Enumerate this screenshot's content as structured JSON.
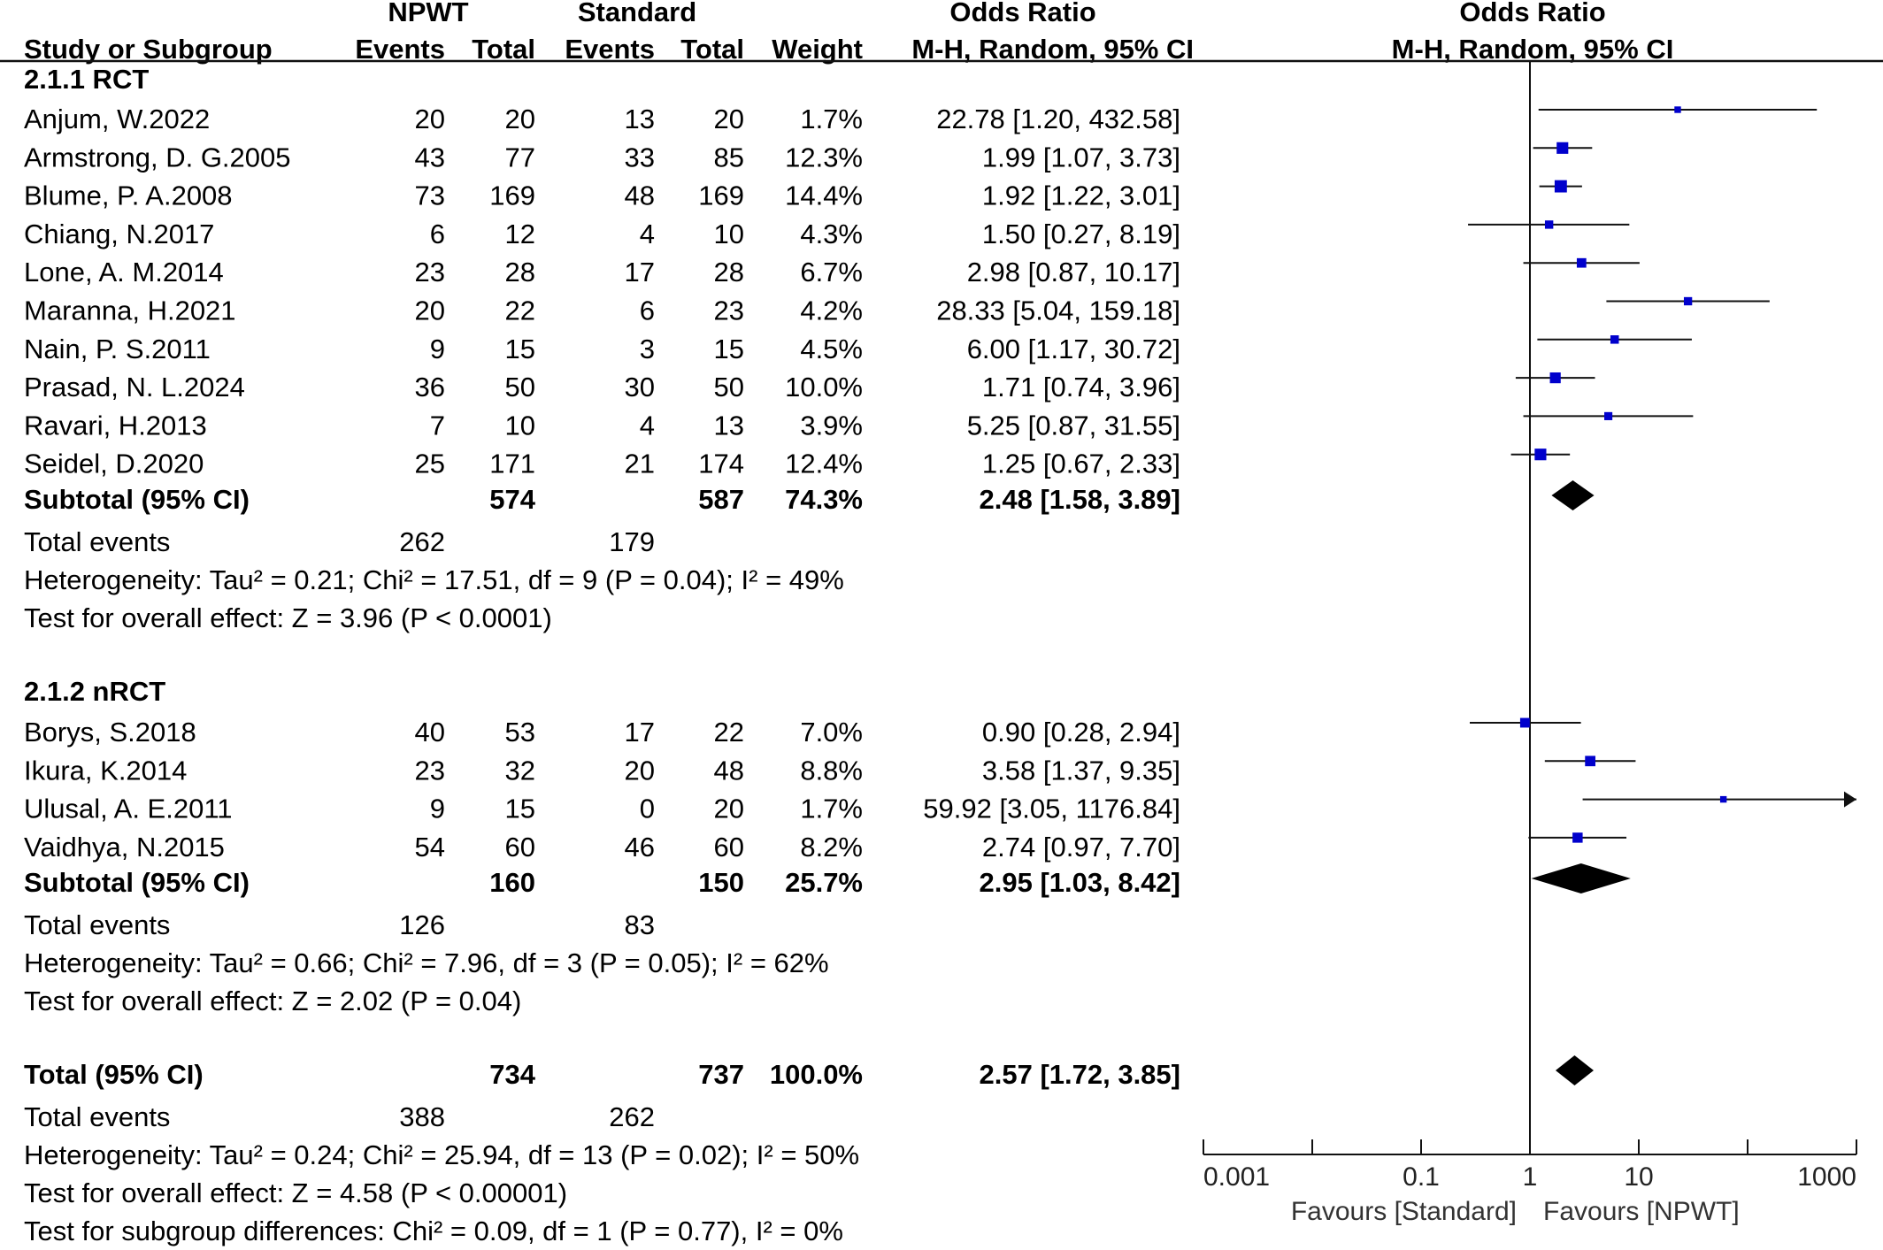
{
  "header": {
    "npwt": "NPWT",
    "standard": "Standard",
    "odds_ratio_left": "Odds Ratio",
    "odds_ratio_right": "Odds Ratio",
    "study_col": "Study or Subgroup",
    "events1": "Events",
    "total1": "Total",
    "events2": "Events",
    "total2": "Total",
    "weight": "Weight",
    "method_left": "M-H, Random, 95% CI",
    "method_right": "M-H, Random, 95% CI"
  },
  "chart_data": {
    "type": "forest",
    "xscale": "log",
    "xlim": [
      0.001,
      1000
    ],
    "ticks": [
      {
        "value": 0.001,
        "label": "0.001"
      },
      {
        "value": 0.1,
        "label": "0.1"
      },
      {
        "value": 1,
        "label": "1"
      },
      {
        "value": 10,
        "label": "10"
      },
      {
        "value": 1000,
        "label": "1000"
      }
    ],
    "favours_left": "Favours [Standard]",
    "favours_right": "Favours [NPWT]",
    "marker_color": "#0000cc",
    "groups": [
      {
        "title": "2.1.1 RCT",
        "studies": [
          {
            "name": "Anjum, W.2022",
            "e1": "20",
            "t1": "20",
            "e2": "13",
            "t2": "20",
            "weight": "1.7%",
            "ci_text": "22.78 [1.20, 432.58]",
            "or": 22.78,
            "lo": 1.2,
            "hi": 432.58
          },
          {
            "name": "Armstrong, D. G.2005",
            "e1": "43",
            "t1": "77",
            "e2": "33",
            "t2": "85",
            "weight": "12.3%",
            "ci_text": "1.99 [1.07, 3.73]",
            "or": 1.99,
            "lo": 1.07,
            "hi": 3.73
          },
          {
            "name": "Blume, P. A.2008",
            "e1": "73",
            "t1": "169",
            "e2": "48",
            "t2": "169",
            "weight": "14.4%",
            "ci_text": "1.92 [1.22, 3.01]",
            "or": 1.92,
            "lo": 1.22,
            "hi": 3.01
          },
          {
            "name": "Chiang, N.2017",
            "e1": "6",
            "t1": "12",
            "e2": "4",
            "t2": "10",
            "weight": "4.3%",
            "ci_text": "1.50 [0.27, 8.19]",
            "or": 1.5,
            "lo": 0.27,
            "hi": 8.19
          },
          {
            "name": "Lone, A. M.2014",
            "e1": "23",
            "t1": "28",
            "e2": "17",
            "t2": "28",
            "weight": "6.7%",
            "ci_text": "2.98 [0.87, 10.17]",
            "or": 2.98,
            "lo": 0.87,
            "hi": 10.17
          },
          {
            "name": "Maranna, H.2021",
            "e1": "20",
            "t1": "22",
            "e2": "6",
            "t2": "23",
            "weight": "4.2%",
            "ci_text": "28.33 [5.04, 159.18]",
            "or": 28.33,
            "lo": 5.04,
            "hi": 159.18
          },
          {
            "name": "Nain, P. S.2011",
            "e1": "9",
            "t1": "15",
            "e2": "3",
            "t2": "15",
            "weight": "4.5%",
            "ci_text": "6.00 [1.17, 30.72]",
            "or": 6.0,
            "lo": 1.17,
            "hi": 30.72
          },
          {
            "name": "Prasad, N. L.2024",
            "e1": "36",
            "t1": "50",
            "e2": "30",
            "t2": "50",
            "weight": "10.0%",
            "ci_text": "1.71 [0.74, 3.96]",
            "or": 1.71,
            "lo": 0.74,
            "hi": 3.96
          },
          {
            "name": "Ravari, H.2013",
            "e1": "7",
            "t1": "10",
            "e2": "4",
            "t2": "13",
            "weight": "3.9%",
            "ci_text": "5.25 [0.87, 31.55]",
            "or": 5.25,
            "lo": 0.87,
            "hi": 31.55
          },
          {
            "name": "Seidel, D.2020",
            "e1": "25",
            "t1": "171",
            "e2": "21",
            "t2": "174",
            "weight": "12.4%",
            "ci_text": "1.25 [0.67, 2.33]",
            "or": 1.25,
            "lo": 0.67,
            "hi": 2.33
          }
        ],
        "subtotal": {
          "label": "Subtotal (95% CI)",
          "t1": "574",
          "t2": "587",
          "weight": "74.3%",
          "ci_text": "2.48 [1.58, 3.89]",
          "or": 2.48,
          "lo": 1.58,
          "hi": 3.89
        },
        "total_events": {
          "label": "Total events",
          "e1": "262",
          "e2": "179"
        },
        "heterogeneity": "Heterogeneity: Tau² = 0.21; Chi² = 17.51, df = 9 (P = 0.04); I² = 49%",
        "overall_effect": "Test for overall effect: Z = 3.96 (P < 0.0001)"
      },
      {
        "title": "2.1.2 nRCT",
        "studies": [
          {
            "name": "Borys, S.2018",
            "e1": "40",
            "t1": "53",
            "e2": "17",
            "t2": "22",
            "weight": "7.0%",
            "ci_text": "0.90 [0.28, 2.94]",
            "or": 0.9,
            "lo": 0.28,
            "hi": 2.94
          },
          {
            "name": "Ikura, K.2014",
            "e1": "23",
            "t1": "32",
            "e2": "20",
            "t2": "48",
            "weight": "8.8%",
            "ci_text": "3.58 [1.37, 9.35]",
            "or": 3.58,
            "lo": 1.37,
            "hi": 9.35
          },
          {
            "name": "Ulusal, A. E.2011",
            "e1": "9",
            "t1": "15",
            "e2": "0",
            "t2": "20",
            "weight": "1.7%",
            "ci_text": "59.92 [3.05, 1176.84]",
            "or": 59.92,
            "lo": 3.05,
            "hi": 1176.84
          },
          {
            "name": "Vaidhya, N.2015",
            "e1": "54",
            "t1": "60",
            "e2": "46",
            "t2": "60",
            "weight": "8.2%",
            "ci_text": "2.74 [0.97, 7.70]",
            "or": 2.74,
            "lo": 0.97,
            "hi": 7.7
          }
        ],
        "subtotal": {
          "label": "Subtotal (95% CI)",
          "t1": "160",
          "t2": "150",
          "weight": "25.7%",
          "ci_text": "2.95 [1.03, 8.42]",
          "or": 2.95,
          "lo": 1.03,
          "hi": 8.42
        },
        "total_events": {
          "label": "Total events",
          "e1": "126",
          "e2": "83"
        },
        "heterogeneity": "Heterogeneity: Tau² = 0.66; Chi² = 7.96, df = 3 (P = 0.05); I² = 62%",
        "overall_effect": "Test for overall effect: Z = 2.02 (P = 0.04)"
      }
    ],
    "overall": {
      "label": "Total (95% CI)",
      "t1": "734",
      "t2": "737",
      "weight": "100.0%",
      "ci_text": "2.57 [1.72, 3.85]",
      "or": 2.57,
      "lo": 1.72,
      "hi": 3.85,
      "total_events": {
        "label": "Total events",
        "e1": "388",
        "e2": "262"
      },
      "heterogeneity": "Heterogeneity: Tau² = 0.24; Chi² = 25.94, df = 13 (P = 0.02); I² = 50%",
      "overall_effect": "Test for overall effect: Z = 4.58 (P < 0.00001)",
      "subgroup_diff": "Test for subgroup differences: Chi² = 0.09, df = 1 (P = 0.77), I² = 0%"
    }
  }
}
